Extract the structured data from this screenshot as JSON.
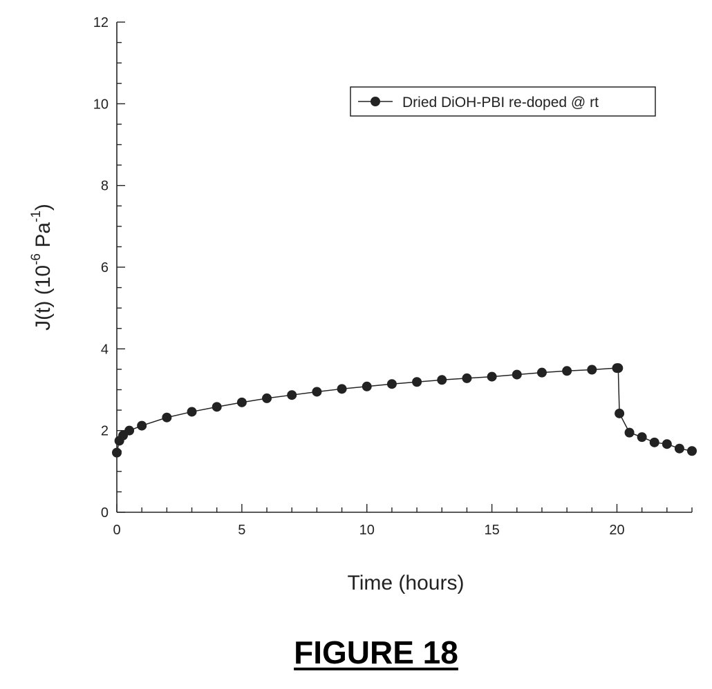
{
  "figure": {
    "caption": "FIGURE 18"
  },
  "chart_data": {
    "type": "line",
    "title": "",
    "xlabel": "Time (hours)",
    "ylabel": {
      "prefix": "J(t) (10",
      "exp1": "-6",
      "mid": " Pa",
      "exp2": "-1",
      "suffix": ")"
    },
    "xlim": [
      0,
      23
    ],
    "ylim": [
      0,
      12
    ],
    "x_major_ticks": [
      0,
      5,
      10,
      15,
      20
    ],
    "x_tick_labels": [
      "0",
      "5",
      "10",
      "15",
      "20"
    ],
    "y_major_ticks": [
      0,
      2,
      4,
      6,
      8,
      10,
      12
    ],
    "y_tick_labels": [
      "0",
      "2",
      "4",
      "6",
      "8",
      "10",
      "12"
    ],
    "grid": false,
    "legend_position": "top-right",
    "series": [
      {
        "name": "Dried DiOH-PBI re-doped @ rt",
        "marker": "filled-circle",
        "color": "#222222",
        "points": [
          [
            0,
            1.46
          ],
          [
            0.1,
            1.75
          ],
          [
            0.25,
            1.88
          ],
          [
            0.5,
            2.0
          ],
          [
            1,
            2.12
          ],
          [
            2,
            2.32
          ],
          [
            3,
            2.46
          ],
          [
            4,
            2.58
          ],
          [
            5,
            2.69
          ],
          [
            6,
            2.79
          ],
          [
            7,
            2.87
          ],
          [
            8,
            2.95
          ],
          [
            9,
            3.02
          ],
          [
            10,
            3.08
          ],
          [
            11,
            3.14
          ],
          [
            12,
            3.19
          ],
          [
            13,
            3.24
          ],
          [
            14,
            3.28
          ],
          [
            15,
            3.32
          ],
          [
            16,
            3.37
          ],
          [
            17,
            3.42
          ],
          [
            18,
            3.46
          ],
          [
            19,
            3.49
          ],
          [
            20,
            3.53
          ],
          [
            20.05,
            3.53
          ],
          [
            20.1,
            2.42
          ],
          [
            20.5,
            1.95
          ],
          [
            21,
            1.84
          ],
          [
            21.5,
            1.71
          ],
          [
            22,
            1.67
          ],
          [
            22.5,
            1.56
          ],
          [
            23,
            1.5
          ]
        ]
      }
    ]
  }
}
